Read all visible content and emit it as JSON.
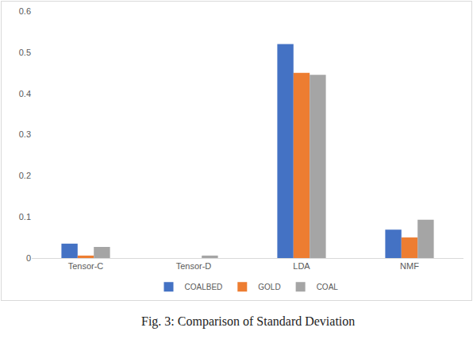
{
  "chart_data": {
    "type": "bar",
    "title": "Fig. 3: Comparison of Standard Deviation",
    "categories": [
      "Tensor-C",
      "Tensor-D",
      "LDA",
      "NMF"
    ],
    "series": [
      {
        "name": "COALBED",
        "color": "#4472c4",
        "values": [
          0.035,
          0,
          0.52,
          0.069
        ]
      },
      {
        "name": "GOLD",
        "color": "#ed7d31",
        "values": [
          0.006,
          0,
          0.45,
          0.05
        ]
      },
      {
        "name": "COAL",
        "color": "#a5a5a5",
        "values": [
          0.027,
          0.006,
          0.445,
          0.093
        ]
      }
    ],
    "ylim": [
      0,
      0.6
    ],
    "yticks": [
      0,
      0.1,
      0.2,
      0.3,
      0.4,
      0.5,
      0.6
    ],
    "grid": false,
    "legend": "bottom"
  }
}
